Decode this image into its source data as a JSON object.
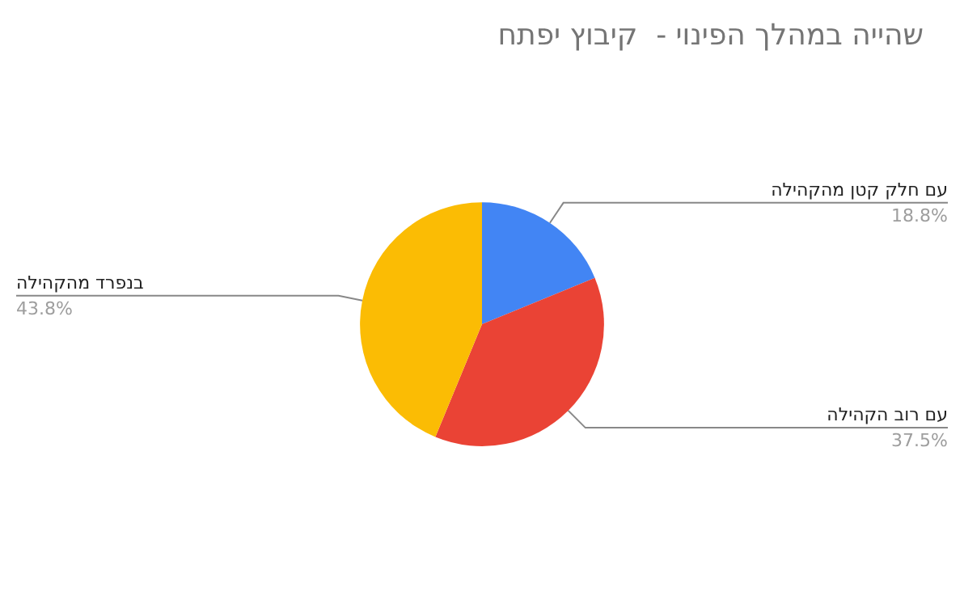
{
  "chart_data": {
    "type": "pie",
    "title": "שהייה במהלך הפינוי -  קיבוץ יפתח",
    "categories": [
      "עם חלק קטן מהקהילה",
      "עם רוב הקהילה",
      "בנפרד מהקהילה"
    ],
    "values": [
      18.8,
      37.5,
      43.8
    ],
    "colors": [
      "#4285f4",
      "#ea4335",
      "#fbbc04"
    ],
    "value_labels": [
      "18.8%",
      "37.5%",
      "43.8%"
    ],
    "legend": false
  }
}
